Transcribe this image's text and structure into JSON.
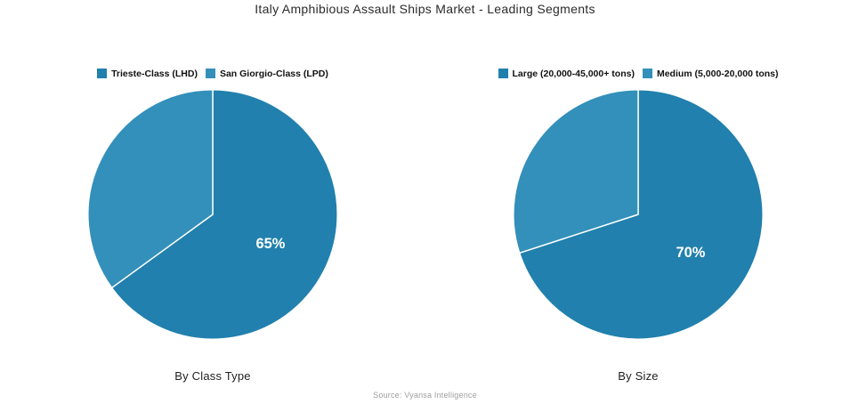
{
  "title": "Italy Amphibious Assault Ships Market - Leading Segments",
  "source": "Source: Vyansa Intelligence",
  "colors": {
    "primary_slice": "#2180ad",
    "secondary_slice": "#3390ba",
    "percent_label": "#ffffff",
    "title_text": "#2b2b2b",
    "source_text": "#9e9e9e"
  },
  "chart_data": [
    {
      "type": "pie",
      "title": "By Class Type",
      "labels": [
        "Trieste-Class (LHD)",
        "San Giorgio-Class (LPD)"
      ],
      "values": [
        65,
        35
      ],
      "value_labels": [
        "65%",
        ""
      ],
      "colors": [
        "#2180ad",
        "#3390ba"
      ],
      "start_angle_deg": -90,
      "direction": "clockwise",
      "legend_position": "top",
      "label_distance": 0.52
    },
    {
      "type": "pie",
      "title": "By Size",
      "labels": [
        "Large (20,000-45,000+ tons)",
        "Medium (5,000-20,000 tons)"
      ],
      "values": [
        70,
        30
      ],
      "value_labels": [
        "70%",
        ""
      ],
      "colors": [
        "#2180ad",
        "#3390ba"
      ],
      "start_angle_deg": -90,
      "direction": "clockwise",
      "legend_position": "top",
      "label_distance": 0.52
    }
  ]
}
